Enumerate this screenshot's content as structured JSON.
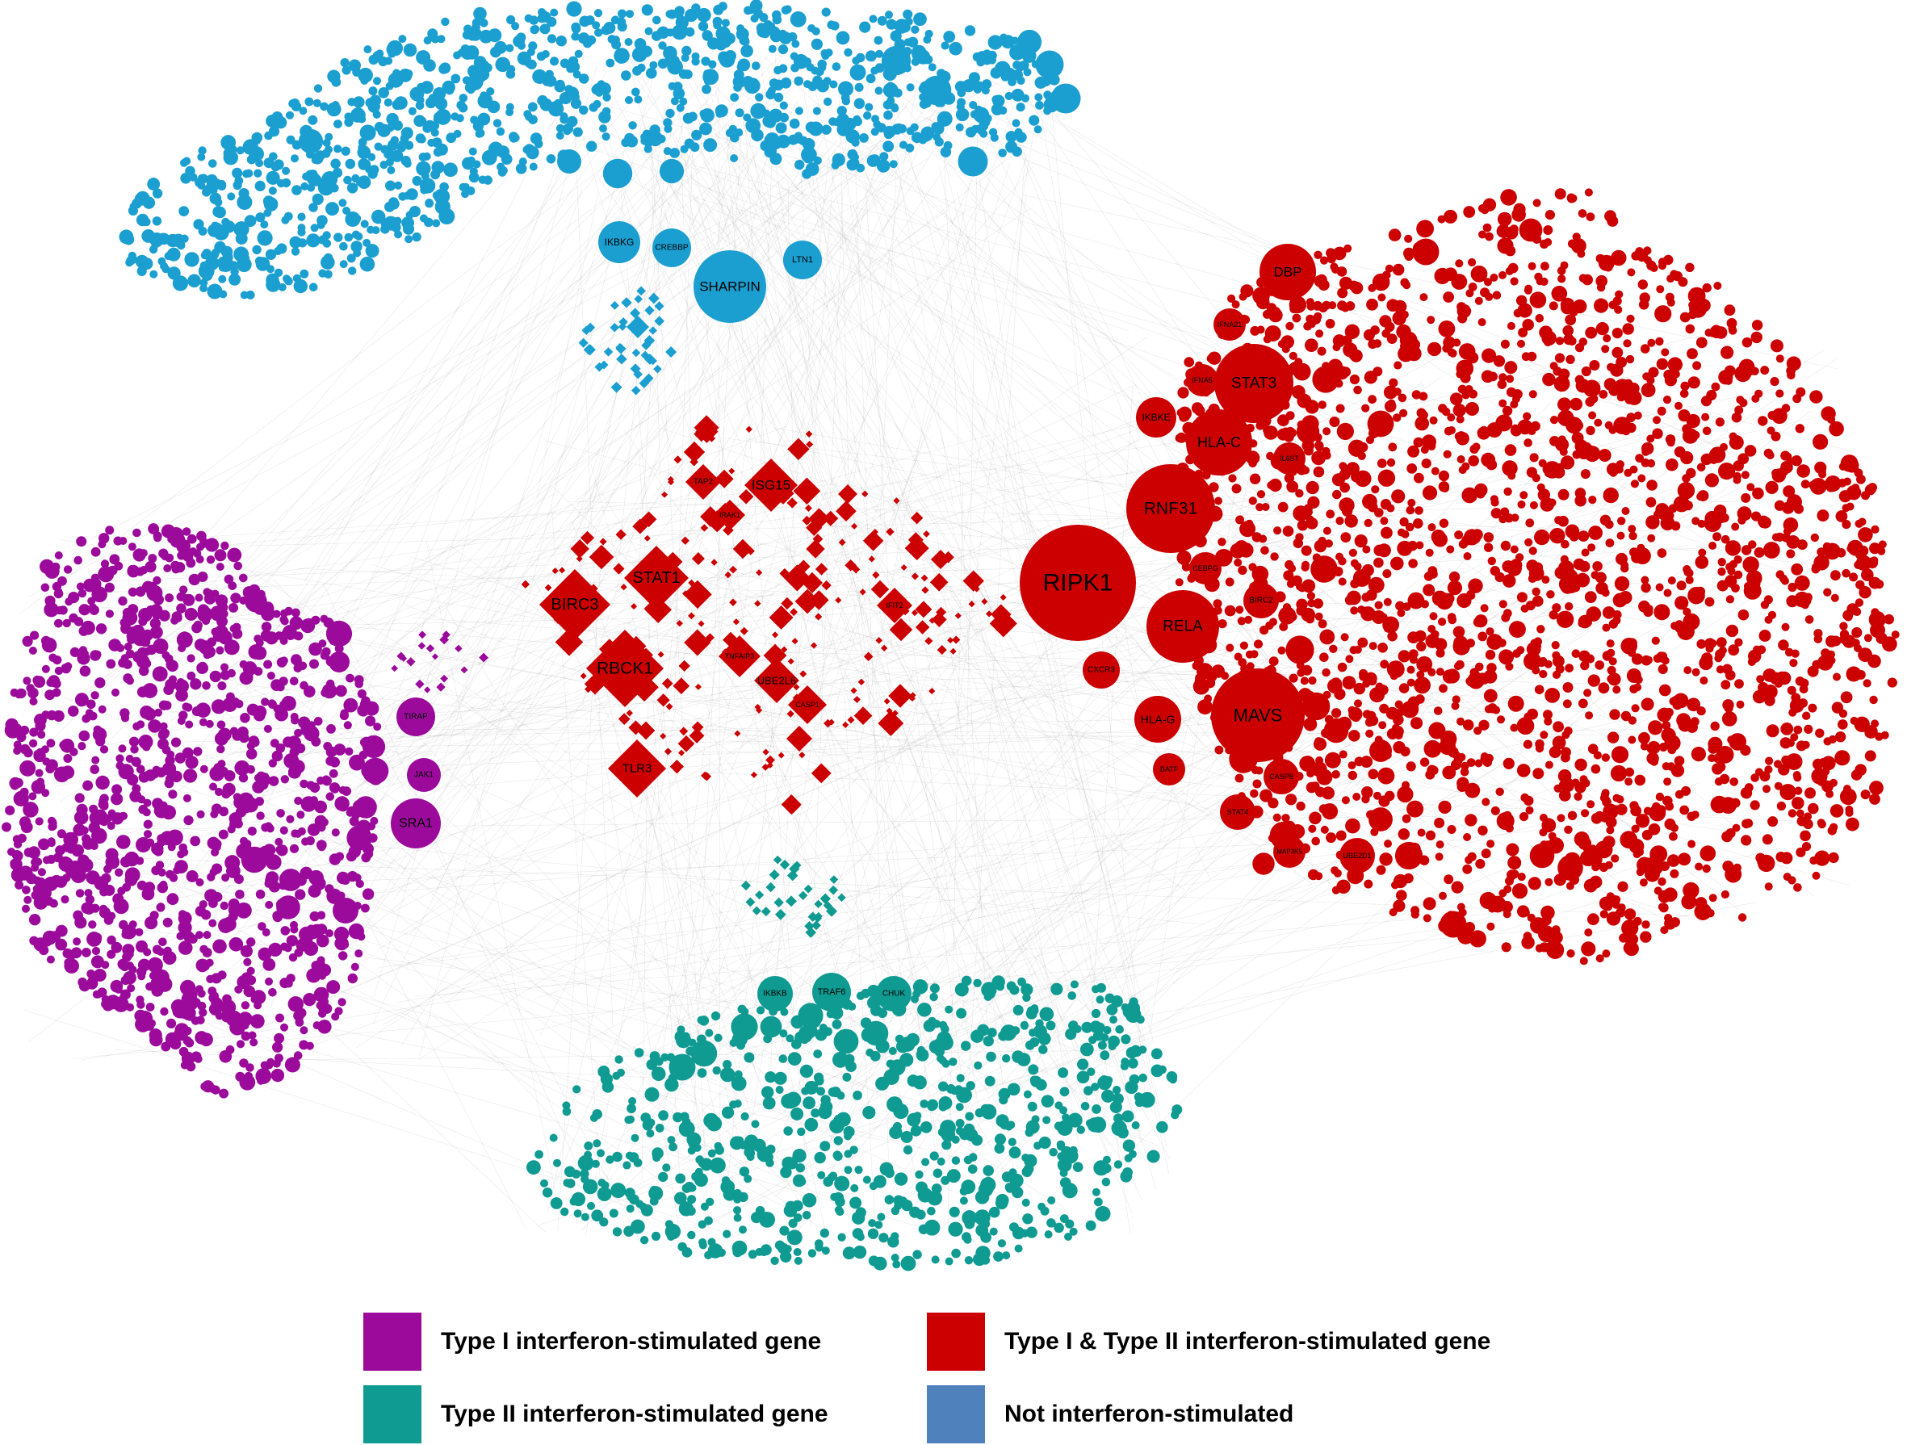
{
  "colors": {
    "type1": "#9b0a9b",
    "type2": "#0f9a92",
    "both": "#cc0000",
    "not": "#1b9fd0",
    "legend_not": "#4f81bd",
    "edge": "#9a9a9a"
  },
  "hub_labels": {
    "blue": [
      "IKBKG",
      "CREBBP",
      "SHARPIN",
      "LTN1"
    ],
    "red_right": [
      "DBP",
      "IFNA21",
      "STAT3",
      "IFNA5",
      "IKBKE",
      "HLA-C",
      "IL6ST",
      "RNF31",
      "RIPK1",
      "CEBPG",
      "BIRC2",
      "RELA",
      "CXCR3",
      "MAVS",
      "HLA-G",
      "BATF",
      "CASP8",
      "STAT4",
      "MAP3K5",
      "UBE2D1"
    ],
    "red_center": [
      "TAP2",
      "ISG15",
      "IRAK1",
      "STAT1",
      "BIRC3",
      "IFIT2",
      "RBCK1",
      "TNFAIP3",
      "UBE2L6",
      "CASP1",
      "TLR3"
    ],
    "purple": [
      "TIRAP",
      "JAK1",
      "SRA1"
    ],
    "teal": [
      "IKBKB",
      "TRAF6",
      "CHUK"
    ]
  },
  "legend": {
    "type1": "Type I interferon-stimulated gene",
    "type2": "Type II interferon-stimulated gene",
    "both": "Type I & Type II interferon-stimulated gene",
    "not": "Not interferon-stimulated"
  }
}
